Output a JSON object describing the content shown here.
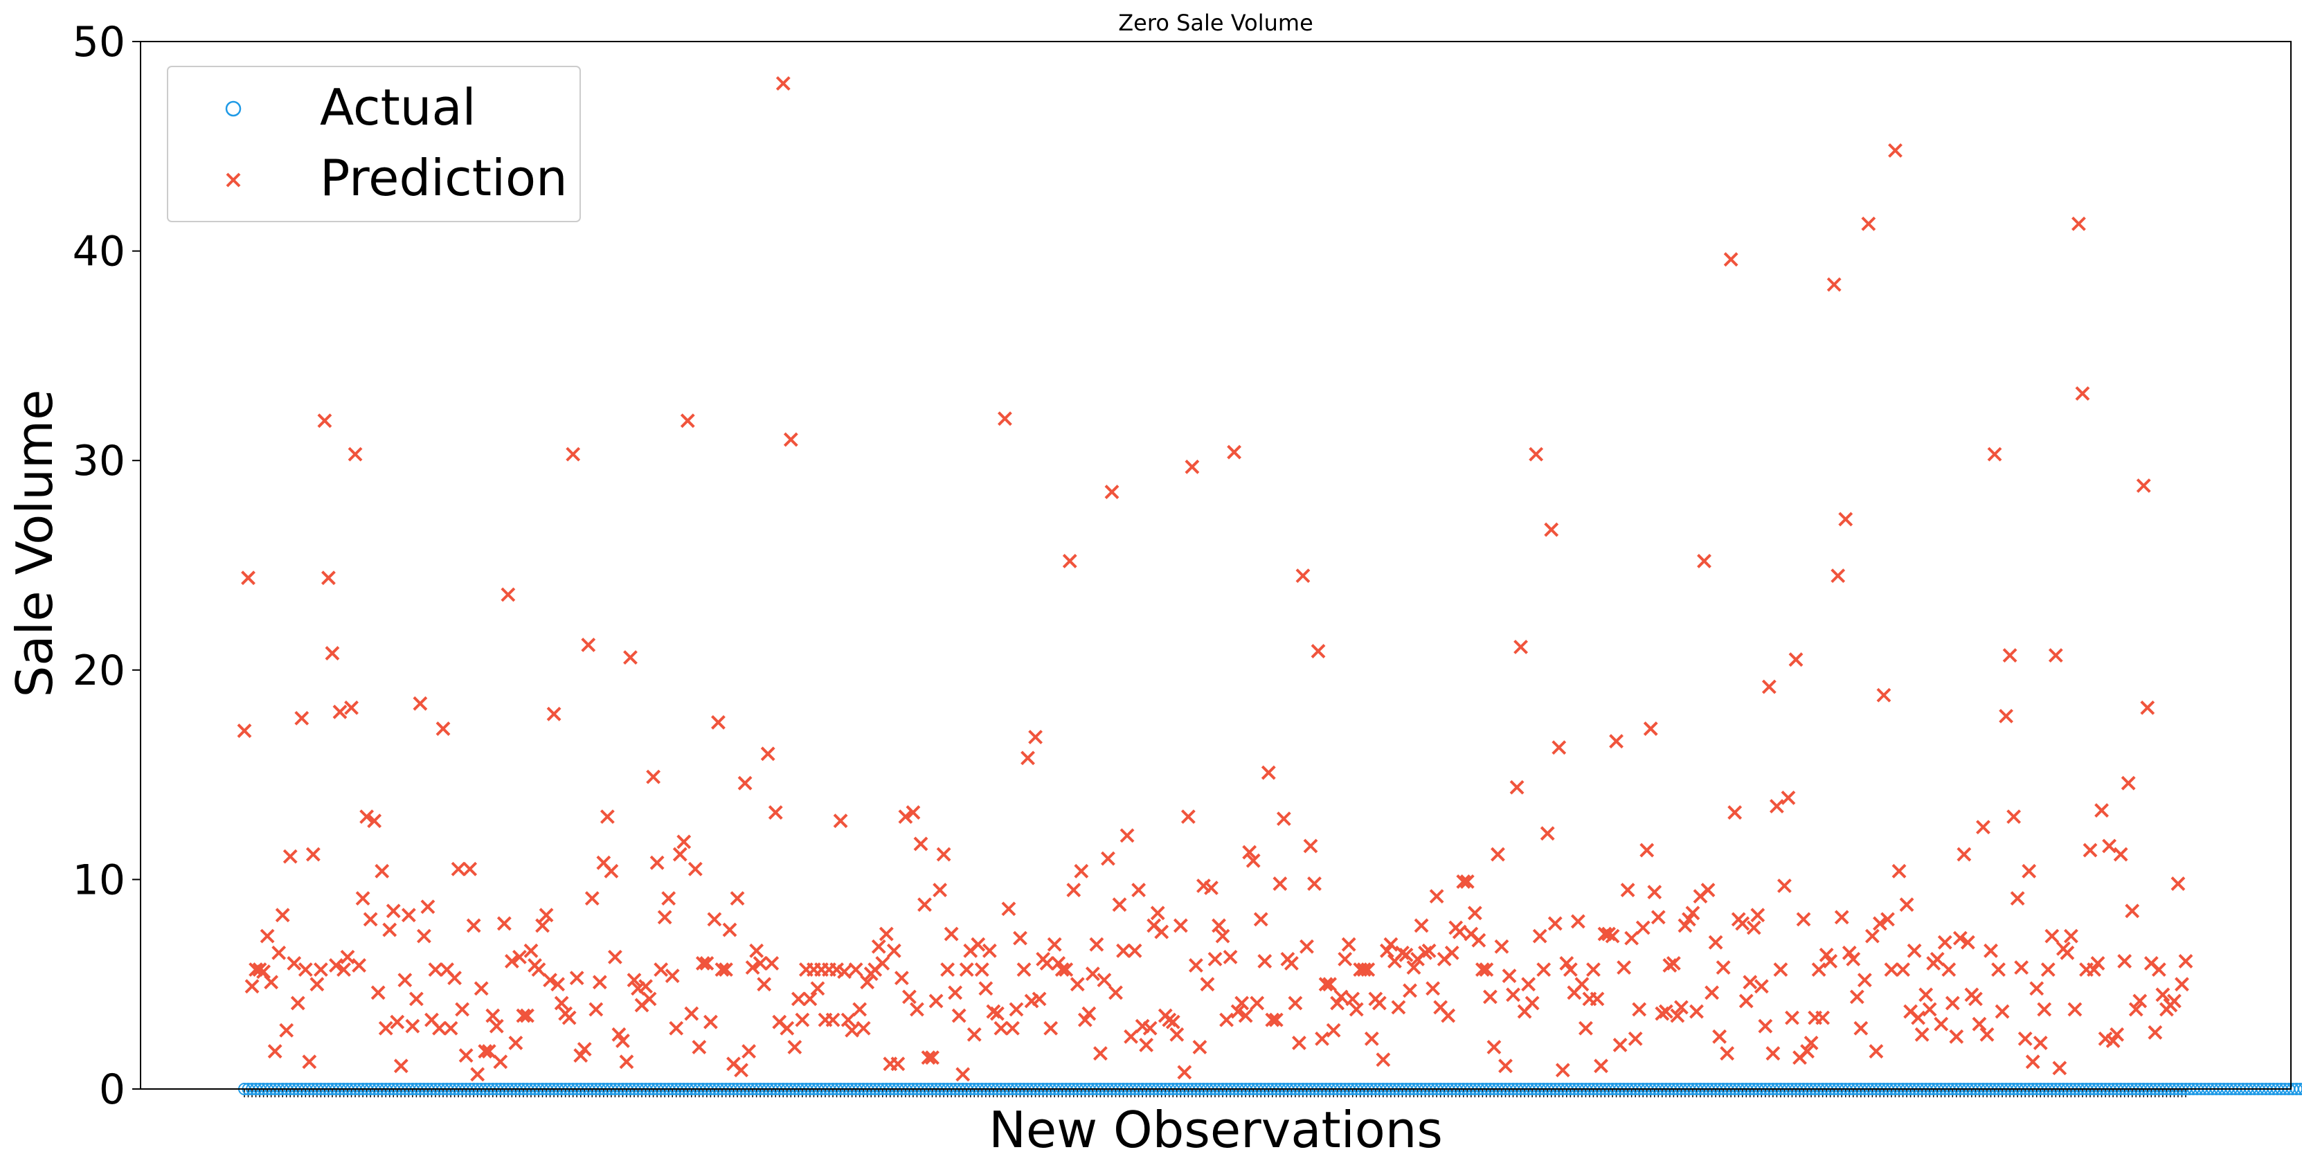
{
  "chart_data": {
    "type": "scatter",
    "title": "Zero Sale Volume",
    "xlabel": "New Observations",
    "ylabel": "Sale Volume",
    "ylim": [
      0,
      50
    ],
    "yticks": [
      0,
      10,
      20,
      30,
      40,
      50
    ],
    "legend_position": "top-left",
    "grid": false,
    "series": [
      {
        "name": "Actual",
        "marker": "circle-open",
        "color": "#1f9ae6",
        "values": [
          0,
          0,
          0,
          0,
          0,
          0,
          0,
          0,
          0,
          0,
          0,
          0,
          0,
          0,
          0,
          0,
          0,
          0,
          0,
          0,
          0,
          0,
          0,
          0,
          0,
          0,
          0,
          0,
          0,
          0,
          0,
          0,
          0,
          0,
          0,
          0,
          0,
          0,
          0,
          0,
          0,
          0,
          0,
          0,
          0,
          0,
          0,
          0,
          0,
          0,
          0,
          0,
          0,
          0,
          0,
          0,
          0,
          0,
          0,
          0,
          0,
          0,
          0,
          0,
          0,
          0,
          0,
          0,
          0,
          0,
          0,
          0,
          0,
          0,
          0,
          0,
          0,
          0,
          0,
          0,
          0,
          0,
          0,
          0,
          0,
          0,
          0,
          0,
          0,
          0,
          0,
          0,
          0,
          0,
          0,
          0,
          0,
          0,
          0,
          0,
          0,
          0,
          0,
          0,
          0,
          0,
          0,
          0,
          0,
          0,
          0,
          0,
          0,
          0,
          0,
          0,
          0,
          0,
          0,
          0,
          0,
          0,
          0,
          0,
          0,
          0,
          0,
          0,
          0,
          0,
          0,
          0,
          0,
          0,
          0,
          0,
          0,
          0,
          0,
          0,
          0,
          0,
          0,
          0,
          0,
          0,
          0,
          0,
          0,
          0,
          0,
          0,
          0,
          0,
          0,
          0,
          0,
          0,
          0,
          0,
          0,
          0,
          0,
          0,
          0,
          0,
          0,
          0,
          0,
          0,
          0,
          0,
          0,
          0,
          0,
          0,
          0,
          0,
          0,
          0,
          0,
          0,
          0,
          0,
          0,
          0,
          0,
          0,
          0,
          0,
          0,
          0,
          0,
          0,
          0,
          0,
          0,
          0,
          0,
          0,
          0,
          0,
          0,
          0,
          0,
          0,
          0,
          0,
          0,
          0,
          0,
          0,
          0,
          0,
          0,
          0,
          0,
          0,
          0,
          0,
          0,
          0,
          0,
          0,
          0,
          0,
          0,
          0,
          0,
          0,
          0,
          0,
          0,
          0,
          0,
          0,
          0,
          0,
          0,
          0,
          0,
          0,
          0,
          0,
          0,
          0,
          0,
          0,
          0,
          0,
          0,
          0,
          0,
          0,
          0,
          0,
          0,
          0,
          0,
          0,
          0,
          0,
          0,
          0,
          0,
          0,
          0,
          0,
          0,
          0,
          0,
          0,
          0,
          0,
          0,
          0,
          0,
          0,
          0,
          0,
          0,
          0,
          0,
          0,
          0,
          0,
          0,
          0,
          0,
          0,
          0,
          0,
          0,
          0,
          0,
          0,
          0,
          0,
          0,
          0,
          0,
          0,
          0,
          0,
          0,
          0,
          0,
          0,
          0,
          0,
          0,
          0,
          0,
          0,
          0,
          0,
          0,
          0,
          0,
          0,
          0,
          0,
          0,
          0,
          0,
          0,
          0,
          0,
          0,
          0,
          0,
          0,
          0,
          0,
          0,
          0,
          0,
          0,
          0,
          0,
          0,
          0,
          0,
          0,
          0,
          0,
          0,
          0,
          0,
          0,
          0,
          0,
          0,
          0,
          0,
          0,
          0,
          0,
          0,
          0,
          0,
          0,
          0,
          0,
          0,
          0,
          0,
          0,
          0,
          0,
          0,
          0,
          0,
          0,
          0,
          0,
          0,
          0,
          0,
          0,
          0,
          0,
          0,
          0,
          0,
          0,
          0,
          0,
          0,
          0,
          0,
          0,
          0,
          0,
          0,
          0,
          0,
          0,
          0,
          0,
          0,
          0,
          0,
          0,
          0,
          0,
          0,
          0,
          0,
          0,
          0,
          0,
          0,
          0,
          0,
          0,
          0,
          0,
          0,
          0,
          0,
          0,
          0,
          0,
          0,
          0,
          0,
          0,
          0,
          0,
          0,
          0,
          0,
          0,
          0,
          0,
          0,
          0,
          0,
          0,
          0,
          0,
          0,
          0,
          0,
          0,
          0,
          0,
          0,
          0,
          0,
          0,
          0,
          0,
          0,
          0,
          0,
          0,
          0,
          0,
          0,
          0,
          0,
          0,
          0,
          0,
          0,
          0,
          0,
          0,
          0,
          0,
          0,
          0,
          0,
          0,
          0,
          0,
          0,
          0,
          0,
          0,
          0,
          0,
          0,
          0,
          0,
          0,
          0,
          0,
          0,
          0,
          0,
          0,
          0,
          0,
          0,
          0,
          0,
          0,
          0,
          0,
          0,
          0,
          0,
          0,
          0,
          0,
          0,
          0,
          0,
          0,
          0,
          0,
          0,
          0,
          0,
          0,
          0,
          0,
          0,
          0,
          0,
          0,
          0,
          0,
          0,
          0,
          0,
          0,
          0,
          0,
          0,
          0,
          0,
          0,
          0,
          0,
          0,
          0,
          0,
          0,
          0,
          0,
          0,
          0,
          0,
          0,
          0,
          0,
          0,
          0,
          0,
          0,
          0,
          0,
          0,
          0,
          0,
          0,
          0,
          0,
          0,
          0,
          0,
          0,
          0,
          0,
          0,
          0,
          0,
          0,
          0,
          0,
          0,
          0,
          0,
          0,
          0,
          0,
          0,
          0,
          0,
          0,
          0,
          0,
          0,
          0,
          0,
          0,
          0,
          0,
          0,
          0,
          0,
          0,
          0,
          0,
          0,
          0,
          0,
          0,
          0,
          0,
          0,
          0,
          0,
          0,
          0,
          0
        ]
      },
      {
        "name": "Prediction",
        "marker": "x",
        "color": "#f0543c",
        "values": [
          17.1,
          24.4,
          4.9,
          5.7,
          5.7,
          5.6,
          7.3,
          5.1,
          1.8,
          6.5,
          8.3,
          2.8,
          11.1,
          6.0,
          4.1,
          17.7,
          5.7,
          1.3,
          11.2,
          5.0,
          5.7,
          31.9,
          24.4,
          20.8,
          5.9,
          18.0,
          5.7,
          6.3,
          18.2,
          30.3,
          5.9,
          9.1,
          13.0,
          8.1,
          12.8,
          4.6,
          10.4,
          2.9,
          7.6,
          8.5,
          3.2,
          1.1,
          5.2,
          8.3,
          3.0,
          4.3,
          18.4,
          7.3,
          8.7,
          3.3,
          5.7,
          2.9,
          17.2,
          5.7,
          2.9,
          5.3,
          10.5,
          3.8,
          1.6,
          10.5,
          7.8,
          0.7,
          4.8,
          1.8,
          1.8,
          3.5,
          3.0,
          1.3,
          7.9,
          23.6,
          6.1,
          2.2,
          6.3,
          3.5,
          3.5,
          6.6,
          5.9,
          5.7,
          7.8,
          8.3,
          5.2,
          17.9,
          5.0,
          4.1,
          3.6,
          3.4,
          30.3,
          5.3,
          1.6,
          1.9,
          21.2,
          9.1,
          3.8,
          5.1,
          10.8,
          13.0,
          10.4,
          6.3,
          2.6,
          2.3,
          1.3,
          20.6,
          5.2,
          4.8,
          4.0,
          4.9,
          4.3,
          14.9,
          10.8,
          5.7,
          8.2,
          9.1,
          5.4,
          2.9,
          11.2,
          11.8,
          31.9,
          3.6,
          10.5,
          2.0,
          6.0,
          6.0,
          3.2,
          8.1,
          17.5,
          5.7,
          5.7,
          7.6,
          1.2,
          9.1,
          0.9,
          14.6,
          1.8,
          5.8,
          6.6,
          6.0,
          5.0,
          16.0,
          6.0,
          13.2,
          3.2,
          48.0,
          2.9,
          31.0,
          2.0,
          4.3,
          3.3,
          5.7,
          4.3,
          5.7,
          4.8,
          5.7,
          3.3,
          5.7,
          3.3,
          5.7,
          12.8,
          5.6,
          3.3,
          2.8,
          5.7,
          3.8,
          2.9,
          5.1,
          5.5,
          5.7,
          6.8,
          6.0,
          7.4,
          1.2,
          6.6,
          1.2,
          5.3,
          13.0,
          4.4,
          13.2,
          3.8,
          11.7,
          8.8,
          1.5,
          1.5,
          4.2,
          9.5,
          11.2,
          5.7,
          7.4,
          4.6,
          3.5,
          0.7,
          5.7,
          6.6,
          2.6,
          6.9,
          5.7,
          4.8,
          6.6,
          3.7,
          3.6,
          2.9,
          32.0,
          8.6,
          2.9,
          3.8,
          7.2,
          5.7,
          15.8,
          4.2,
          16.8,
          4.3,
          6.2,
          6.0,
          2.9,
          6.9,
          6.0,
          5.7,
          5.7,
          25.2,
          9.5,
          5.0,
          10.4,
          3.3,
          3.6,
          5.5,
          6.9,
          1.7,
          5.2,
          11.0,
          28.5,
          4.6,
          8.8,
          6.6,
          12.1,
          2.5,
          6.6,
          9.5,
          3.0,
          2.1,
          2.9,
          7.8,
          8.4,
          7.5,
          3.5,
          3.3,
          3.2,
          2.6,
          7.8,
          0.8,
          13.0,
          29.7,
          5.9,
          2.0,
          9.7,
          5.0,
          9.6,
          6.2,
          7.8,
          7.3,
          3.3,
          6.3,
          30.4,
          3.7,
          4.1,
          3.5,
          11.3,
          10.9,
          4.1,
          8.1,
          6.1,
          15.1,
          3.3,
          3.3,
          9.8,
          12.9,
          6.2,
          6.0,
          4.1,
          2.2,
          24.5,
          6.8,
          11.6,
          9.8,
          20.9,
          2.4,
          5.0,
          5.0,
          2.8,
          4.1,
          4.4,
          6.2,
          6.9,
          4.3,
          3.8,
          5.7,
          5.7,
          5.7,
          2.4,
          4.3,
          4.1,
          1.4,
          6.6,
          6.9,
          6.1,
          3.9,
          6.5,
          6.4,
          4.7,
          5.8,
          6.2,
          7.8,
          6.5,
          6.6,
          4.8,
          9.2,
          3.9,
          6.2,
          3.5,
          6.5,
          7.7,
          7.5,
          9.9,
          9.9,
          7.4,
          8.4,
          7.1,
          5.7,
          5.7,
          4.4,
          2.0,
          11.2,
          6.8,
          1.1,
          5.4,
          4.5,
          14.4,
          21.1,
          3.7,
          5.0,
          4.1,
          30.3,
          7.3,
          5.7,
          12.2,
          26.7,
          7.9,
          16.3,
          0.9,
          6.0,
          5.7,
          4.6,
          8.0,
          5.0,
          2.9,
          4.3,
          5.7,
          4.3,
          1.1,
          7.4,
          7.4,
          7.3,
          16.6,
          2.1,
          5.8,
          9.5,
          7.2,
          2.4,
          3.8,
          7.7,
          11.4,
          17.2,
          9.4,
          8.2,
          3.6,
          3.7,
          5.9,
          6.0,
          3.5,
          3.9,
          7.8,
          8.1,
          8.4,
          3.7,
          9.2,
          25.2,
          9.5,
          4.6,
          7.0,
          2.5,
          5.8,
          1.7,
          39.6,
          13.2,
          8.1,
          7.9,
          4.2,
          5.1,
          7.7,
          8.3,
          4.9,
          3.0,
          19.2,
          1.7,
          13.5,
          5.7,
          9.7,
          13.9,
          3.4,
          20.5,
          1.5,
          8.1,
          1.8,
          2.2,
          3.4,
          5.7,
          3.4,
          6.4,
          6.1,
          38.4,
          24.5,
          8.2,
          27.2,
          6.5,
          6.2,
          4.4,
          2.9,
          5.2,
          41.3,
          7.3,
          1.8,
          7.9,
          18.8,
          8.1,
          5.7,
          44.8,
          10.4,
          5.7,
          8.8,
          3.7,
          6.6,
          3.4,
          2.6,
          4.5,
          3.8,
          6.0,
          6.2,
          3.1,
          7.0,
          5.7,
          4.1,
          2.5,
          7.2,
          11.2,
          7.0,
          4.5,
          4.3,
          3.1,
          12.5,
          2.6,
          6.6,
          30.3,
          5.7,
          3.7,
          17.8,
          20.7,
          13.0,
          9.1,
          5.8,
          2.4,
          10.4,
          1.3,
          4.8,
          2.2,
          3.8,
          5.7,
          7.3,
          20.7,
          1.0,
          6.7,
          6.5,
          7.3,
          3.8,
          41.3,
          33.2,
          5.7,
          11.4,
          5.7,
          6.0,
          13.3,
          2.4,
          11.6,
          2.3,
          2.6,
          11.2,
          6.1,
          14.6,
          8.5,
          3.8,
          4.2,
          28.8,
          18.2,
          6.0,
          2.7,
          5.7,
          4.5,
          3.8,
          4.0,
          4.2,
          9.8,
          5.0,
          6.1
        ]
      }
    ]
  }
}
